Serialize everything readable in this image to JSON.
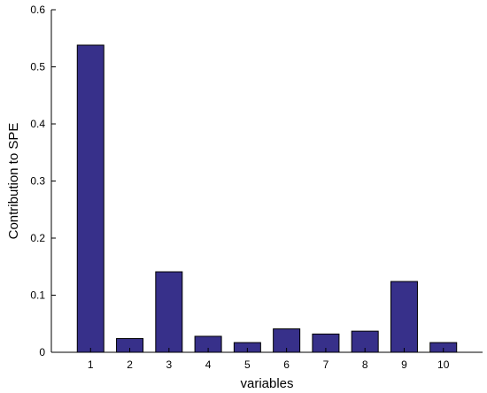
{
  "chart_data": {
    "type": "bar",
    "title": "",
    "xlabel": "variables",
    "ylabel": "Contribution to SPE",
    "categories": [
      "1",
      "2",
      "3",
      "4",
      "5",
      "6",
      "7",
      "8",
      "9",
      "10"
    ],
    "values": [
      0.538,
      0.024,
      0.141,
      0.028,
      0.017,
      0.041,
      0.032,
      0.037,
      0.124,
      0.017
    ],
    "ylim": [
      0,
      0.6
    ],
    "xlim": [
      0,
      11
    ],
    "yticks": [
      0,
      0.1,
      0.2,
      0.3,
      0.4,
      0.5,
      0.6
    ],
    "ytick_labels": [
      "0",
      "0.1",
      "0.2",
      "0.3",
      "0.4",
      "0.5",
      "0.6"
    ],
    "grid": false,
    "bar_color": "#37308a",
    "edge_color": "#000000"
  }
}
